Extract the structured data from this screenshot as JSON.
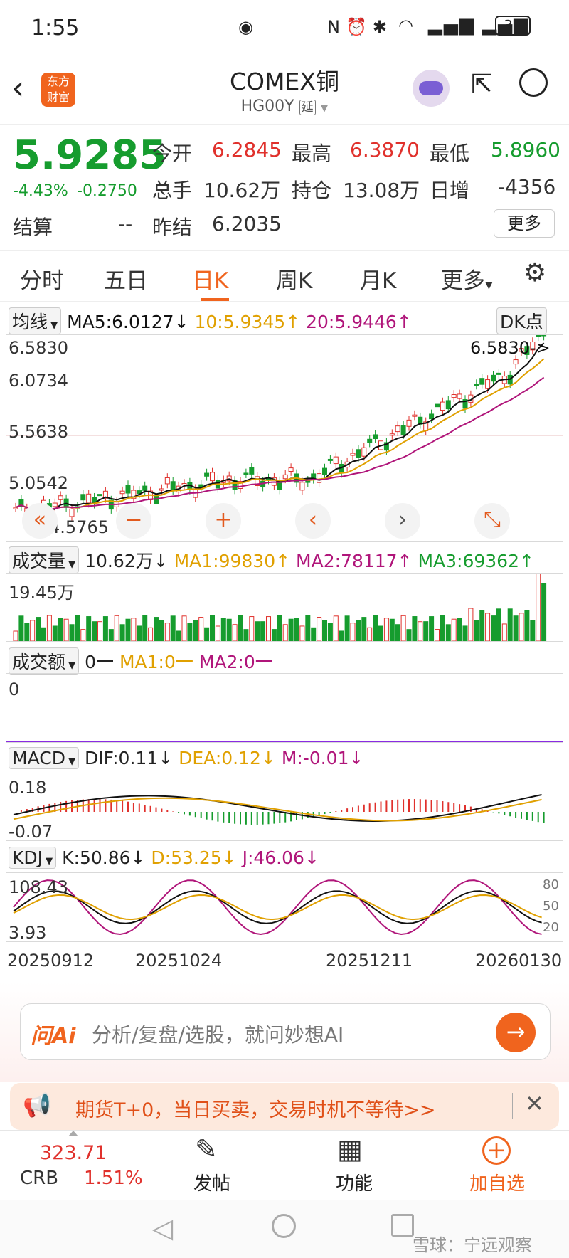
{
  "status": {
    "time": "1:55",
    "battery": "35"
  },
  "header": {
    "logo_line1": "东方",
    "logo_line2": "财富",
    "title": "COMEX铜",
    "code": "HG00Y",
    "delay_badge": "延"
  },
  "quote": {
    "price": "5.9285",
    "change_pct": "-4.43%",
    "change": "-0.2750",
    "open_label": "今开",
    "open": "6.2845",
    "high_label": "最高",
    "high": "6.3870",
    "low_label": "最低",
    "low": "5.8960",
    "vol_label": "总手",
    "vol": "10.62万",
    "oi_label": "持仓",
    "oi": "13.08万",
    "daily_label": "日增",
    "daily": "-4356",
    "settle_label": "结算",
    "settle": "--",
    "prev_label": "昨结",
    "prev": "6.2035",
    "more": "更多"
  },
  "tabs": [
    "分时",
    "五日",
    "日K",
    "周K",
    "月K",
    "更多"
  ],
  "active_tab": "日K",
  "ma": {
    "label": "均线",
    "ma5": "MA5:6.0127↓",
    "ma10": "10:5.9345↑",
    "ma20": "20:5.9446↑",
    "dk": "DK点"
  },
  "price_axis": [
    "6.5830",
    "6.0734",
    "5.5638",
    "5.0542",
    "4.5765"
  ],
  "high_marker": "6.5830->",
  "volume": {
    "label": "成交量",
    "val": "10.62万↓",
    "ma1": "MA1:99830↑",
    "ma2": "MA2:78117↑",
    "ma3": "MA3:69362↑",
    "axis": "19.45万"
  },
  "amount": {
    "label": "成交额",
    "val": "0一",
    "ma1": "MA1:0一",
    "ma2": "MA2:0一",
    "axis": "0"
  },
  "macd": {
    "label": "MACD",
    "dif": "DIF:0.11↓",
    "dea": "DEA:0.12↓",
    "m": "M:-0.01↓",
    "axis_top": "0.18",
    "axis_bot": "-0.07"
  },
  "kdj": {
    "label": "KDJ",
    "k": "K:50.86↓",
    "d": "D:53.25↓",
    "j": "J:46.06↓",
    "axis_top": "108.43",
    "axis_bot": "3.93",
    "r80": "80",
    "r50": "50",
    "r20": "20"
  },
  "dates": [
    "20250912",
    "20251024",
    "20251211",
    "20260130"
  ],
  "ai": {
    "logo": "问Ai",
    "placeholder": "分析/复盘/选股，就问妙想AI"
  },
  "promo": {
    "text": "期货T+0，当日买卖，交易时机不等待>>"
  },
  "bottom": {
    "crb_value": "323.71",
    "crb_label": "CRB",
    "crb_pct": "1.51%",
    "post": "发帖",
    "func": "功能",
    "add": "加自选"
  },
  "watermark": "雪球：宁远观察",
  "colors": {
    "up": "#e0312c",
    "down": "#169c2e",
    "ma5": "#111111",
    "ma10": "#e0a000",
    "ma20": "#b0157a",
    "accent": "#f0641e"
  }
}
